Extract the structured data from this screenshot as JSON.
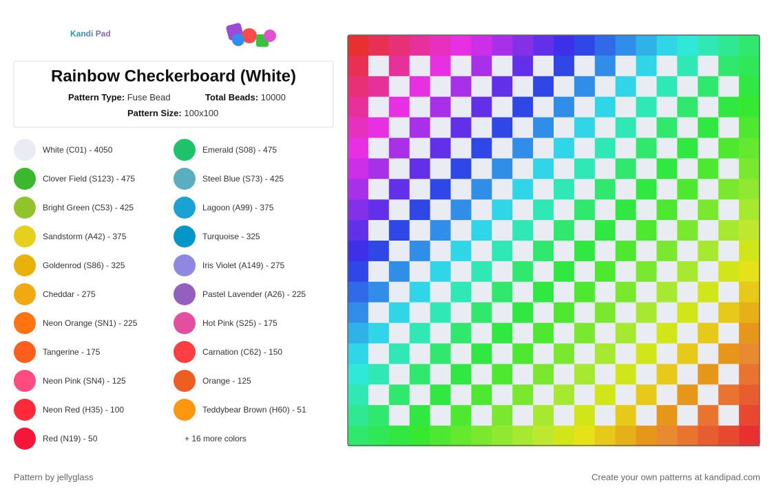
{
  "header": {
    "logo": "Kandi Pad",
    "title": "Rainbow Checkerboard (White)",
    "pattern_type_label": "Pattern Type:",
    "pattern_type": "Fuse Bead",
    "total_beads_label": "Total Beads:",
    "total_beads": "10000",
    "pattern_size_label": "Pattern Size:",
    "pattern_size": "100x100"
  },
  "colors": [
    {
      "label": "White (C01) - 4050",
      "color": "#e9ecf2"
    },
    {
      "label": "Clover Field (S123) - 475",
      "color": "#3cb82e"
    },
    {
      "label": "Bright Green (C53) - 425",
      "color": "#8fc42a"
    },
    {
      "label": "Sandstorm (A42) - 375",
      "color": "#e7cf1e"
    },
    {
      "label": "Goldenrod (S86) - 325",
      "color": "#e8b20c"
    },
    {
      "label": "Cheddar - 275",
      "color": "#f0a913"
    },
    {
      "label": "Neon Orange (SN1) - 225",
      "color": "#ff7410"
    },
    {
      "label": "Tangerine - 175",
      "color": "#ff5f1c"
    },
    {
      "label": "Neon Pink (SN4) - 125",
      "color": "#ff4c80"
    },
    {
      "label": "Neon Red (H35) - 100",
      "color": "#ff2a3a"
    },
    {
      "label": "Red (N19) - 50",
      "color": "#f5173a"
    },
    {
      "label": "Emerald (S08) - 475",
      "color": "#1fc26a"
    },
    {
      "label": "Steel Blue (S73) - 425",
      "color": "#5aaec0"
    },
    {
      "label": "Lagoon (A99) - 375",
      "color": "#19a2d2"
    },
    {
      "label": "Turquoise - 325",
      "color": "#0596c8"
    },
    {
      "label": "Iris Violet (A149) - 275",
      "color": "#8f88e0"
    },
    {
      "label": "Pastel Lavender (A26) - 225",
      "color": "#9460c0"
    },
    {
      "label": "Hot Pink (S25) - 175",
      "color": "#e14f9e"
    },
    {
      "label": "Carnation (C62) - 150",
      "color": "#ff3e44"
    },
    {
      "label": "Orange - 125",
      "color": "#ec5e22"
    },
    {
      "label": "Teddybear Brown (H60) - 51",
      "color": "#ff9610"
    }
  ],
  "more_colors": "+ 16 more colors",
  "footer": {
    "author": "Pattern by jellyglass",
    "cta": "Create your own patterns at kandipad.com"
  }
}
